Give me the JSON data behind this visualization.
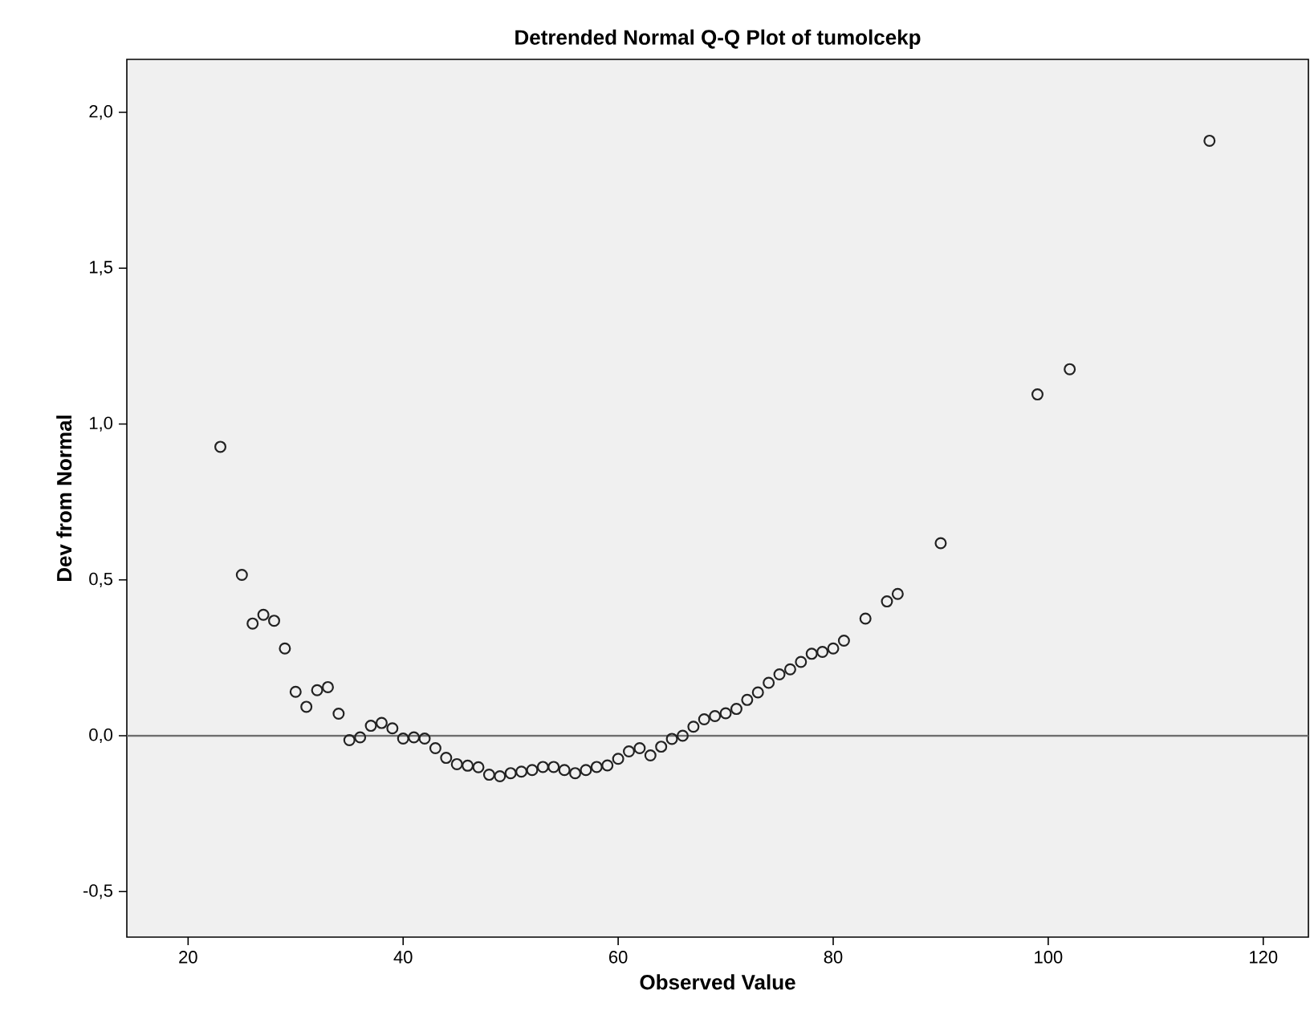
{
  "chart_data": {
    "type": "scatter",
    "title": "Detrended Normal Q-Q Plot of tumolcekp",
    "xlabel": "Observed Value",
    "ylabel": "Dev from Normal",
    "series": [
      {
        "color": "#222222",
        "x": [
          23,
          25,
          26,
          27,
          28,
          29,
          30,
          31,
          32,
          33,
          34,
          35,
          36,
          37,
          38,
          39,
          40,
          41,
          42,
          43,
          44,
          45,
          46,
          47,
          48,
          49,
          50,
          51,
          52,
          53,
          54,
          55,
          56,
          57,
          58,
          59,
          60,
          61,
          62,
          63,
          64,
          65,
          66,
          67,
          68,
          69,
          70,
          71,
          72,
          73,
          74,
          75,
          76,
          77,
          78,
          79,
          80,
          81,
          83,
          85,
          86,
          90,
          99,
          102,
          115
        ],
        "values": [
          0.927,
          0.516,
          0.36,
          0.388,
          0.369,
          0.28,
          0.141,
          0.093,
          0.146,
          0.156,
          0.071,
          -0.014,
          -0.005,
          0.032,
          0.041,
          0.024,
          -0.009,
          -0.005,
          -0.009,
          -0.04,
          -0.071,
          -0.091,
          -0.096,
          -0.101,
          -0.125,
          -0.13,
          -0.12,
          -0.115,
          -0.11,
          -0.1,
          -0.1,
          -0.11,
          -0.12,
          -0.11,
          -0.1,
          -0.095,
          -0.074,
          -0.05,
          -0.04,
          -0.063,
          -0.035,
          -0.01,
          0.0,
          0.029,
          0.053,
          0.063,
          0.072,
          0.086,
          0.115,
          0.139,
          0.17,
          0.197,
          0.213,
          0.237,
          0.263,
          0.269,
          0.28,
          0.305,
          0.376,
          0.431,
          0.455,
          0.618,
          1.095,
          1.176,
          1.909
        ]
      }
    ],
    "xlim": [
      14.3,
      124.2
    ],
    "ylim": [
      -0.646,
      2.17
    ],
    "xticks": [
      20,
      40,
      60,
      80,
      100,
      120
    ],
    "yticks": [
      {
        "value": -0.5,
        "label": "-0,5"
      },
      {
        "value": 0,
        "label": "0,0"
      },
      {
        "value": 0.5,
        "label": "0,5"
      },
      {
        "value": 1,
        "label": "1,0"
      },
      {
        "value": 1.5,
        "label": "1,5"
      },
      {
        "value": 2,
        "label": "2,0"
      }
    ],
    "ref_lines": [
      {
        "axis": "y",
        "value": 0,
        "color": "#6e6e6e"
      }
    ],
    "marker": "circle"
  }
}
